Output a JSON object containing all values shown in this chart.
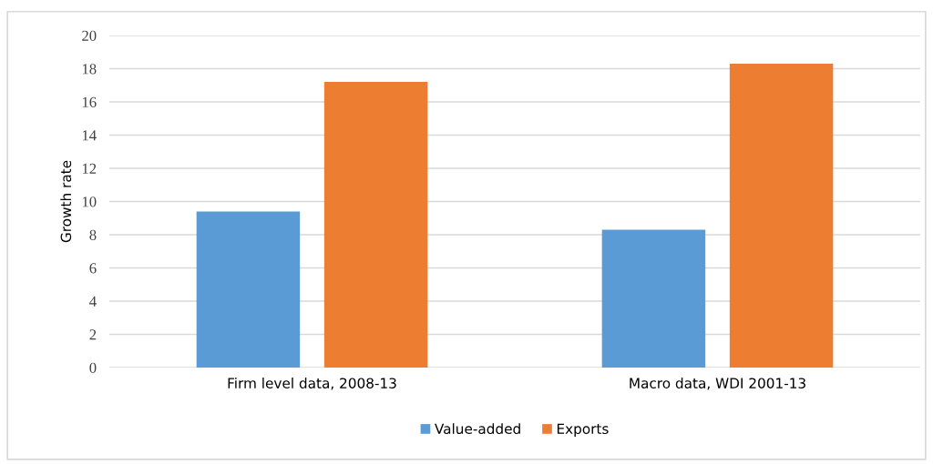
{
  "chart_data": {
    "type": "bar",
    "ylabel": "Growth rate",
    "categories": [
      "Firm level data, 2008-13",
      "Macro data, WDI 2001-13"
    ],
    "series": [
      {
        "name": "Value-added",
        "color": "#5b9bd5",
        "values": [
          9.4,
          8.3
        ]
      },
      {
        "name": "Exports",
        "color": "#ed7d31",
        "values": [
          17.2,
          18.3
        ]
      }
    ],
    "ylim": [
      0,
      20
    ],
    "yticks": [
      0,
      2,
      4,
      6,
      8,
      10,
      12,
      14,
      16,
      18,
      20
    ],
    "grid": "y",
    "legend": "bottom"
  }
}
